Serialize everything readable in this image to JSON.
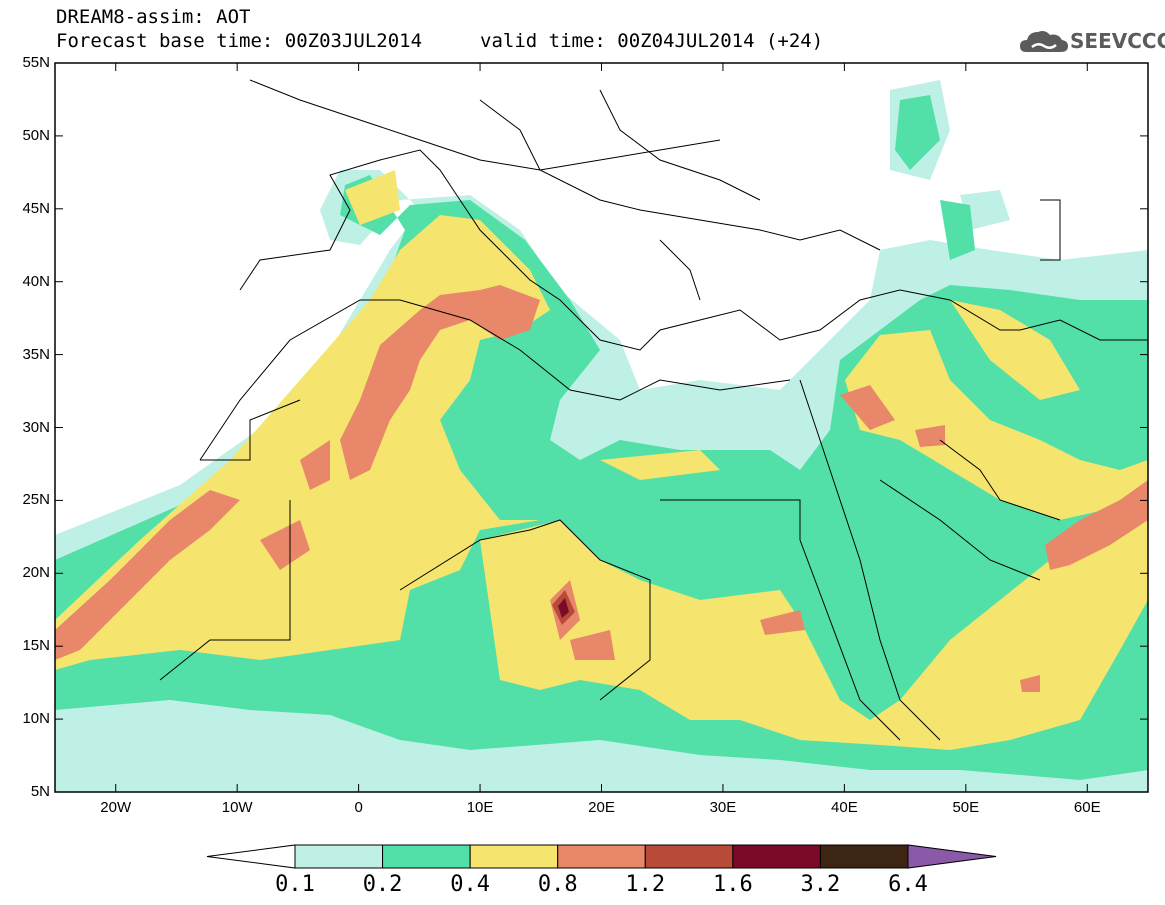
{
  "header": {
    "title_line1": "DREAM8-assim: AOT",
    "title_line2_base": "Forecast base time: 00Z03JUL2014",
    "title_line2_valid": "valid time: 00Z04JUL2014 (+24)",
    "logo_text": "SEEVCCC",
    "logo_icon": "cloud-logo-icon"
  },
  "map": {
    "lat_labels": [
      "55N",
      "50N",
      "45N",
      "40N",
      "35N",
      "30N",
      "25N",
      "20N",
      "15N",
      "10N",
      "5N"
    ],
    "lon_labels": [
      "20W",
      "10W",
      "0",
      "10E",
      "20E",
      "30E",
      "40E",
      "50E",
      "60E"
    ],
    "lon_range": [
      -25,
      65
    ],
    "lat_range": [
      5,
      55
    ]
  },
  "colorbar": {
    "labels": [
      "0.1",
      "0.2",
      "0.4",
      "0.8",
      "1.2",
      "1.6",
      "3.2",
      "6.4"
    ],
    "colors": [
      "#ffffff",
      "#bff0e6",
      "#52e0a8",
      "#f5e56e",
      "#e8876a",
      "#b84a3a",
      "#7a0a28",
      "#3d2514",
      "#8a5aa8"
    ]
  }
}
